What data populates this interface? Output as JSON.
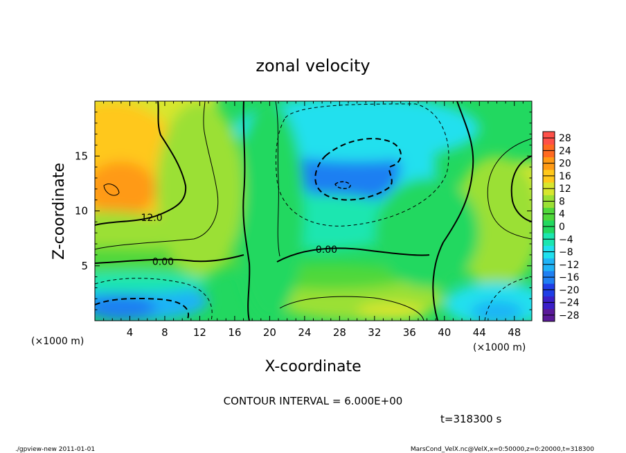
{
  "chart_data": {
    "type": "heatmap",
    "title": "zonal velocity",
    "xlabel": "X-coordinate",
    "ylabel": "Z-coordinate",
    "x_unit": "(×1000 m)",
    "z_unit": "(×1000 m)",
    "xlim": [
      0,
      50
    ],
    "zlim": [
      0,
      20
    ],
    "x_ticks": [
      4,
      8,
      12,
      16,
      20,
      24,
      28,
      32,
      36,
      40,
      44,
      48
    ],
    "z_ticks": [
      5,
      10,
      15
    ],
    "colorbar_ticks": [
      28,
      24,
      20,
      16,
      12,
      8,
      4,
      0,
      -4,
      -8,
      -12,
      -16,
      -20,
      -24,
      -28
    ],
    "colorbar_range": [
      -30,
      30
    ],
    "contour_labels": [
      {
        "text": "12.0",
        "x": 6.5,
        "z": 9.4
      },
      {
        "text": "0.00",
        "x": 7.8,
        "z": 5.4
      },
      {
        "text": "0.00",
        "x": 26.5,
        "z": 6.5
      }
    ],
    "contour_interval_text": "CONTOUR INTERVAL = 6.000E+00",
    "time_text": "t=318300 s",
    "footer_left": "./gpview-new   2011-01-01",
    "footer_right": "MarsCond_VelX.nc@VelX,x=0:50000,z=0:20000,t=318300"
  }
}
